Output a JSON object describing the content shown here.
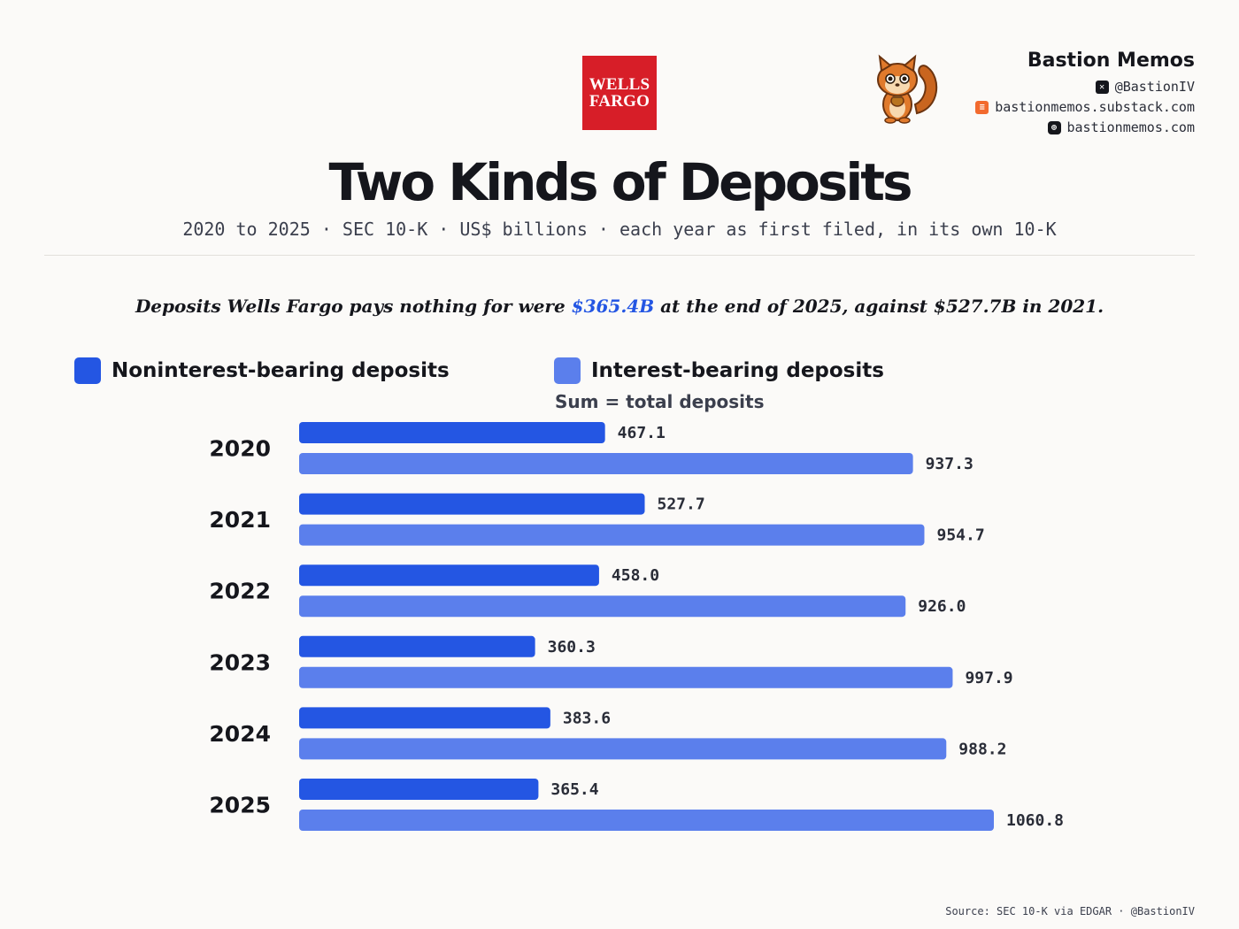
{
  "logo": {
    "line1": "WELLS",
    "line2": "FARGO"
  },
  "brand": {
    "name": "Bastion Memos",
    "handle": "@BastionIV",
    "substack": "bastionmemos.substack.com",
    "website": "bastionmemos.com"
  },
  "title": "Two Kinds of Deposits",
  "subtitle": "2020 to 2025 · SEC 10-K · US$ billions · each year as first filed, in its own 10-K",
  "headline": {
    "before": "Deposits Wells Fargo pays nothing for were ",
    "highlight": "$365.4B",
    "after": " at the end of 2025, against $527.7B in 2021."
  },
  "legend": {
    "noninterest": "Noninterest-bearing deposits",
    "interest": "Interest-bearing deposits",
    "note": "Sum = total deposits"
  },
  "colors": {
    "noninterest": "#2456e3",
    "interest": "#5b7fec",
    "brand_red": "#d71e28"
  },
  "chart_data": {
    "type": "bar",
    "orientation": "horizontal",
    "units": "US$ billions",
    "categories": [
      "2020",
      "2021",
      "2022",
      "2023",
      "2024",
      "2025"
    ],
    "series": [
      {
        "name": "Noninterest-bearing deposits",
        "values": [
          467.1,
          527.7,
          458.0,
          360.3,
          383.6,
          365.4
        ]
      },
      {
        "name": "Interest-bearing deposits",
        "values": [
          937.3,
          954.7,
          926.0,
          997.9,
          988.2,
          1060.8
        ]
      }
    ],
    "value_labels": [
      [
        "467.1",
        "527.7",
        "458.0",
        "360.3",
        "383.6",
        "365.4"
      ],
      [
        "937.3",
        "954.7",
        "926.0",
        "997.9",
        "988.2",
        "1060.8"
      ]
    ],
    "xlim": [
      0,
      1060.8
    ],
    "grid": false
  },
  "source": "Source: SEC 10-K via EDGAR · @BastionIV"
}
